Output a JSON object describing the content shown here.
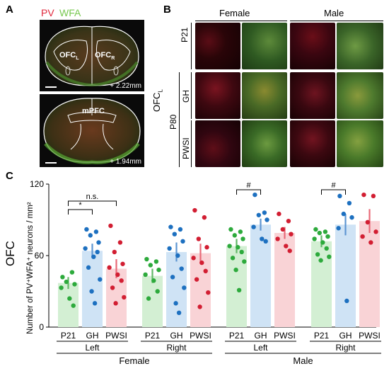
{
  "panels": {
    "a": "A",
    "b": "B",
    "c": "C"
  },
  "panel_a": {
    "legend_pv": "PV",
    "legend_wfa": "WFA",
    "pv_color": "#e0283c",
    "wfa_color": "#78c850",
    "top": {
      "left_label": "OFC",
      "left_sub": "L",
      "right_label": "OFC",
      "right_sub": "R",
      "coord": "+ 2.22mm"
    },
    "bottom": {
      "label": "mPFC",
      "coord": "+ 1.94mm"
    }
  },
  "panel_b": {
    "female": "Female",
    "male": "Male",
    "row_p21": "P21",
    "row_gh": "GH",
    "row_pwsi": "PWSI",
    "group_p80": "P80",
    "region": "OFC",
    "region_sub": "L"
  },
  "chart_data": {
    "type": "bar",
    "region_label": "OFC",
    "ylabel": "Number of PV⁺WFA⁺ neurons / mm²",
    "ylim": [
      0,
      120
    ],
    "yticks": [
      "0",
      "60",
      "120"
    ],
    "groups": [
      {
        "sex": "Female",
        "side": "Left",
        "categories": [
          "P21",
          "GH",
          "PWSI"
        ],
        "means": [
          37,
          64,
          49
        ],
        "sem": [
          5,
          6,
          8
        ],
        "points": [
          [
            42,
            46,
            38,
            36,
            33,
            24,
            18
          ],
          [
            82,
            80,
            77,
            71,
            66,
            59,
            63,
            50,
            40,
            30,
            20
          ],
          [
            85,
            71,
            63,
            53,
            50,
            44,
            39,
            33,
            25,
            20
          ]
        ]
      },
      {
        "sex": "Female",
        "side": "Right",
        "categories": [
          "P21",
          "GH",
          "PWSI"
        ],
        "means": [
          43,
          63,
          62
        ],
        "sem": [
          6,
          8,
          8
        ],
        "points": [
          [
            57,
            55,
            52,
            48,
            44,
            39,
            30,
            24
          ],
          [
            84,
            82,
            78,
            72,
            66,
            60,
            49,
            42,
            33,
            20,
            12
          ],
          [
            98,
            92,
            74,
            67,
            58,
            54,
            47,
            40,
            29,
            17
          ]
        ]
      },
      {
        "sex": "Male",
        "side": "Left",
        "categories": [
          "P21",
          "GH",
          "PWSI"
        ],
        "means": [
          68,
          86,
          79
        ],
        "sem": [
          6,
          5,
          5
        ],
        "points": [
          [
            82,
            80,
            77,
            74,
            68,
            67,
            63,
            58,
            55,
            48,
            31
          ],
          [
            111,
            96,
            94,
            90,
            84,
            74,
            72
          ],
          [
            95,
            89,
            82,
            78,
            74,
            68,
            64
          ]
        ]
      },
      {
        "sex": "Male",
        "side": "Right",
        "categories": [
          "P21",
          "GH",
          "PWSI"
        ],
        "means": [
          72,
          86,
          89
        ],
        "sem": [
          5,
          9,
          10
        ],
        "points": [
          [
            82,
            80,
            79,
            76,
            74,
            71,
            66,
            61,
            59,
            56
          ],
          [
            110,
            104,
            95,
            92,
            83,
            22
          ],
          [
            111,
            110,
            88,
            80,
            76,
            71
          ]
        ]
      }
    ],
    "significance": [
      {
        "group": 0,
        "from": 0,
        "to": 1,
        "label": "*"
      },
      {
        "group": 0,
        "from": 0,
        "to": 2,
        "label": "n.s."
      },
      {
        "group": 2,
        "from": 0,
        "to": 1,
        "label": "#"
      },
      {
        "group": 3,
        "from": 0,
        "to": 1,
        "label": "#"
      }
    ],
    "bar_colors": [
      "#d3efd3",
      "#cfe3f5",
      "#f9d3d6"
    ],
    "point_colors": [
      "#2daa3c",
      "#1d70c0",
      "#d21e32"
    ],
    "error_colors": [
      "#62b868",
      "#5e96d2",
      "#e86a78"
    ]
  }
}
